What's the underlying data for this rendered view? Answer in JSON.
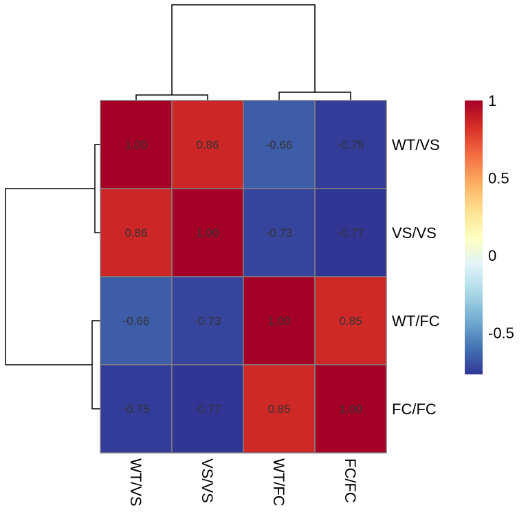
{
  "chart_data": {
    "type": "heatmap",
    "rows": [
      "WT/VS",
      "VS/VS",
      "WT/FC",
      "FC/FC"
    ],
    "columns": [
      "WT/VS",
      "VS/VS",
      "WT/FC",
      "FC/FC"
    ],
    "values": [
      [
        1.0,
        0.86,
        -0.66,
        -0.75
      ],
      [
        0.86,
        1.0,
        -0.73,
        -0.77
      ],
      [
        -0.66,
        -0.73,
        1.0,
        0.85
      ],
      [
        -0.75,
        -0.77,
        0.85,
        1.0
      ]
    ],
    "cell_labels": [
      [
        "1.00",
        "0.86",
        "-0.66",
        "-0.75"
      ],
      [
        "0.86",
        "1.00",
        "-0.73",
        "-0.77"
      ],
      [
        "-0.66",
        "-0.73",
        "1.00",
        "0.85"
      ],
      [
        "-0.75",
        "-0.77",
        "0.85",
        "1.00"
      ]
    ],
    "color_scale": {
      "range": [
        -0.77,
        1.0
      ],
      "ticks": [
        1,
        0.5,
        0,
        -0.5
      ],
      "tick_labels": [
        "1",
        "0.5",
        "0",
        "-0.5"
      ],
      "colors": [
        "#313695",
        "#4575b4",
        "#74add1",
        "#abd9e9",
        "#e0f3f8",
        "#ffffbf",
        "#fee090",
        "#fdae61",
        "#f46d43",
        "#d73027",
        "#a50026"
      ]
    },
    "dendrograms": {
      "rows": "top",
      "columns": "left",
      "row_clusters": [
        [
          "WT/VS",
          "VS/VS"
        ],
        [
          "WT/FC",
          "FC/FC"
        ]
      ],
      "column_clusters": [
        [
          "WT/VS",
          "VS/VS"
        ],
        [
          "WT/FC",
          "FC/FC"
        ]
      ]
    },
    "cell_border_color": "#808080",
    "label_color": "#333333"
  }
}
